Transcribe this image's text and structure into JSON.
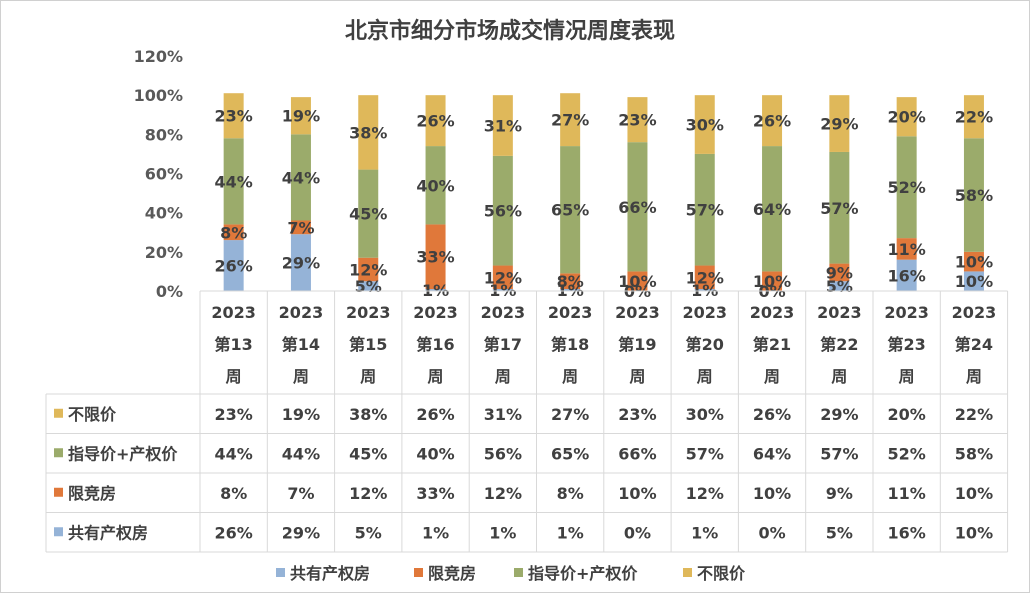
{
  "chart_data": {
    "type": "bar",
    "stacked": true,
    "percent_stacked": true,
    "title": "北京市细分市场成交情况周度表现",
    "ylim": [
      0,
      120
    ],
    "y_ticks": [
      "0%",
      "20%",
      "40%",
      "60%",
      "80%",
      "100%",
      "120%"
    ],
    "categories": [
      [
        "2023",
        "第13",
        "周"
      ],
      [
        "2023",
        "第14",
        "周"
      ],
      [
        "2023",
        "第15",
        "周"
      ],
      [
        "2023",
        "第16",
        "周"
      ],
      [
        "2023",
        "第17",
        "周"
      ],
      [
        "2023",
        "第18",
        "周"
      ],
      [
        "2023",
        "第19",
        "周"
      ],
      [
        "2023",
        "第20",
        "周"
      ],
      [
        "2023",
        "第21",
        "周"
      ],
      [
        "2023",
        "第22",
        "周"
      ],
      [
        "2023",
        "第23",
        "周"
      ],
      [
        "2023",
        "第24",
        "周"
      ]
    ],
    "series": [
      {
        "name": "共有产权房",
        "color": "#95b3d7",
        "values": [
          26,
          29,
          5,
          1,
          1,
          1,
          0,
          1,
          0,
          5,
          16,
          10
        ]
      },
      {
        "name": "限竞房",
        "color": "#e0783a",
        "values": [
          8,
          7,
          12,
          33,
          12,
          8,
          10,
          12,
          10,
          9,
          11,
          10
        ]
      },
      {
        "name": "指导价+产权价",
        "color": "#9bab6b",
        "values": [
          44,
          44,
          45,
          40,
          56,
          65,
          66,
          57,
          64,
          57,
          52,
          58
        ]
      },
      {
        "name": "不限价",
        "color": "#dfb85a",
        "values": [
          23,
          19,
          38,
          26,
          31,
          27,
          23,
          30,
          26,
          29,
          20,
          22
        ]
      }
    ],
    "data_table": true,
    "legend_position": "bottom",
    "grid": false
  }
}
